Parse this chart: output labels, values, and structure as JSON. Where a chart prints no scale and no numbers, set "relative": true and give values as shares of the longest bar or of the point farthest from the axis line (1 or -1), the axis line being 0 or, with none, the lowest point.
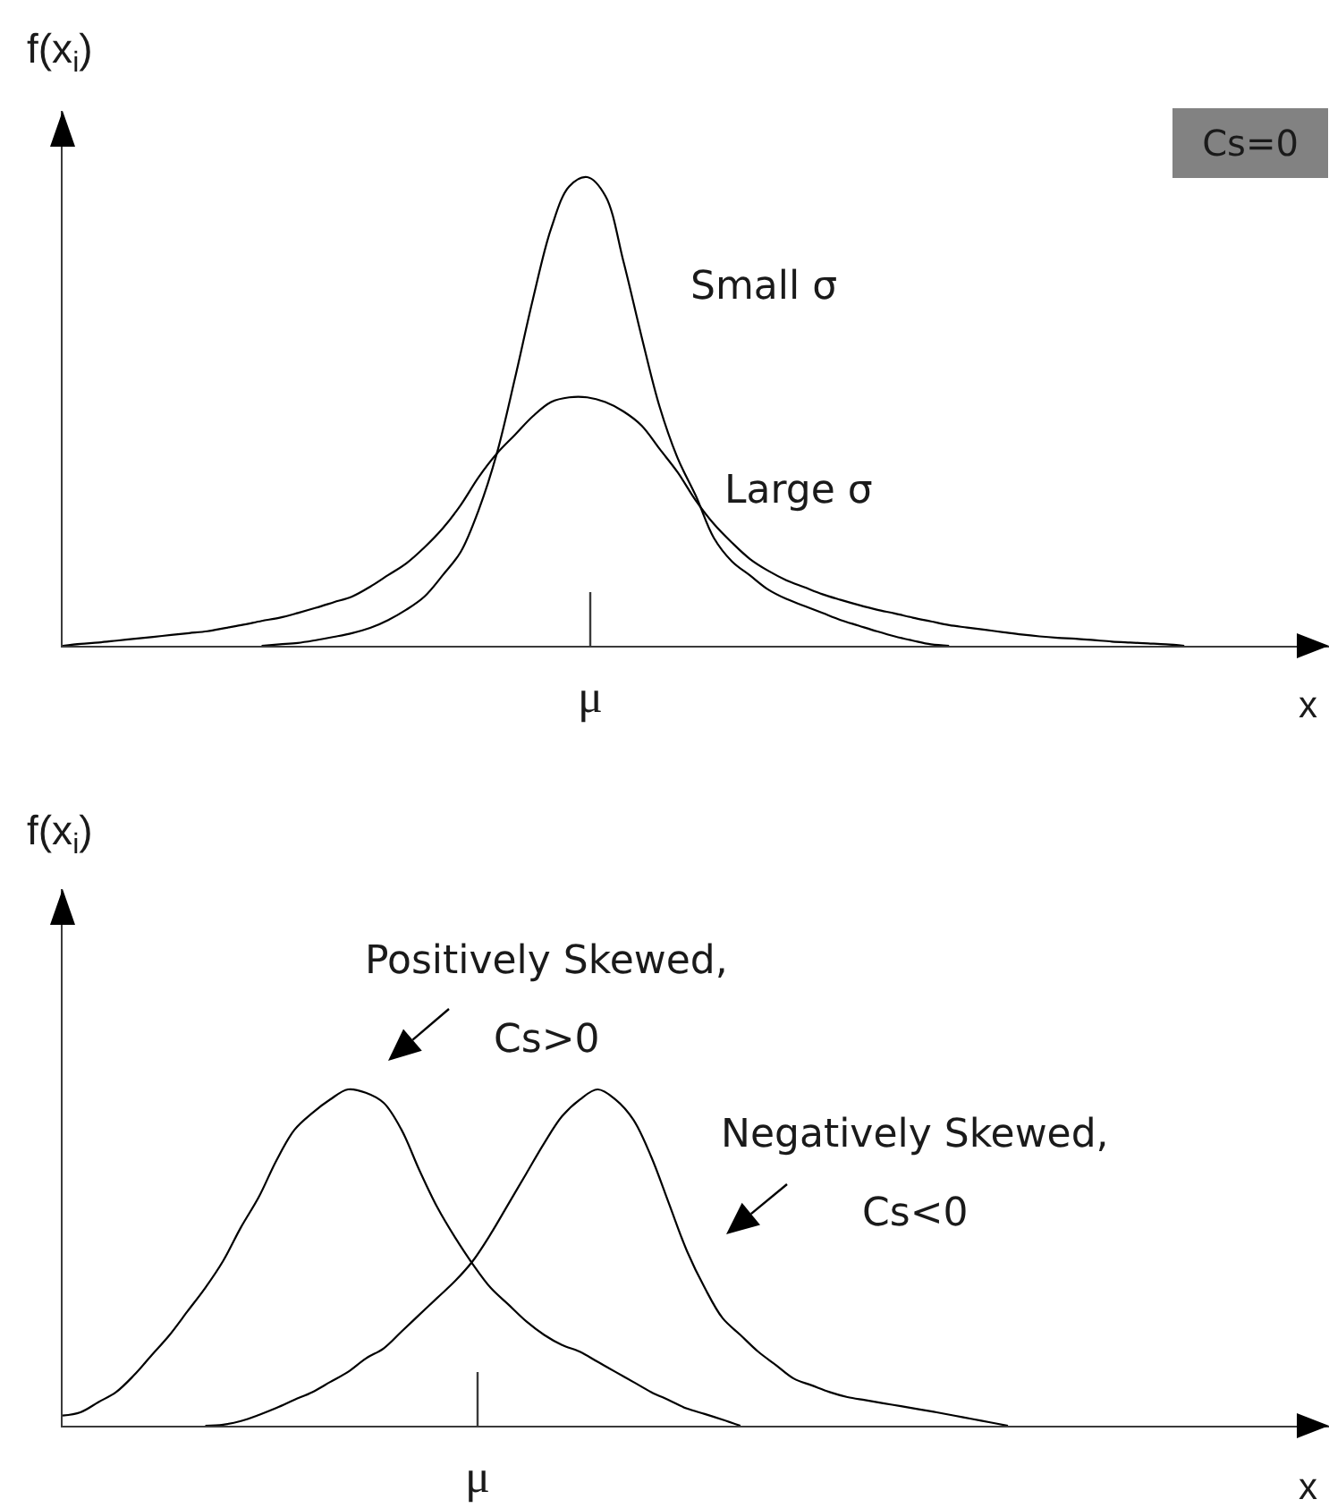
{
  "chart_data": [
    {
      "type": "line",
      "relative": true,
      "xlabel": "x",
      "ylabel": "f(x$_{i}$)",
      "annotations": [
        "Cs=0",
        "μ"
      ],
      "categories": [
        null,
        null,
        null,
        null,
        null,
        null,
        null,
        null,
        null,
        null,
        null,
        null,
        null,
        null,
        null,
        null,
        null,
        null,
        null,
        null,
        null,
        null,
        null,
        null,
        null,
        null,
        null,
        null,
        null,
        null,
        null,
        null,
        null,
        null,
        null,
        null,
        null,
        null,
        null,
        null,
        null,
        null,
        null,
        null,
        null,
        null,
        null,
        null,
        null,
        null,
        null,
        null,
        null,
        null,
        null,
        null,
        null,
        null,
        null,
        null,
        null,
        null,
        null,
        null,
        null,
        null,
        null,
        null,
        null,
        null,
        null
      ],
      "series": [
        {
          "name": "Small σ",
          "color": "#000000",
          "values": [
            null,
            null,
            null,
            null,
            null,
            null,
            null,
            null,
            null,
            null,
            null,
            0,
            0.003,
            0.006,
            0.012,
            0.019,
            0.027,
            0.038,
            0.055,
            0.077,
            0.105,
            0.15,
            0.2,
            0.29,
            0.41,
            0.57,
            0.74,
            0.89,
            0.98,
            1,
            0.96,
            0.82,
            0.66,
            0.51,
            0.4,
            0.32,
            0.23,
            0.18,
            0.15,
            0.12,
            0.1,
            0.085,
            0.07,
            0.055,
            0.043,
            0.031,
            0.02,
            0.011,
            0.003,
            0,
            null,
            null,
            null,
            null,
            null,
            null,
            null,
            null,
            null,
            null,
            null,
            null,
            null,
            null,
            null,
            null,
            null,
            null,
            null,
            null,
            null
          ]
        },
        {
          "name": "Large σ",
          "color": "#000000",
          "values": [
            0,
            0.004,
            0.007,
            0.011,
            0.015,
            0.019,
            0.023,
            0.027,
            0.031,
            0.038,
            0.045,
            0.053,
            0.06,
            0.07,
            0.081,
            0.093,
            0.105,
            0.126,
            0.151,
            0.176,
            0.21,
            0.25,
            0.3,
            0.36,
            0.41,
            0.45,
            0.49,
            0.52,
            0.53,
            0.53,
            0.52,
            0.5,
            0.47,
            0.42,
            0.37,
            0.31,
            0.26,
            0.22,
            0.185,
            0.16,
            0.14,
            0.125,
            0.11,
            0.098,
            0.087,
            0.077,
            0.069,
            0.06,
            0.052,
            0.044,
            0.039,
            0.034,
            0.029,
            0.024,
            0.02,
            0.017,
            0.015,
            0.012,
            0.009,
            0.007,
            0.005,
            0.003,
            0,
            null,
            null,
            null,
            null,
            null,
            null,
            null,
            null
          ]
        }
      ]
    },
    {
      "type": "line",
      "relative": true,
      "xlabel": "x",
      "ylabel": "f(x$_{i}$)",
      "annotations": [
        "μ"
      ],
      "categories": [
        null,
        null,
        null,
        null,
        null,
        null,
        null,
        null,
        null,
        null,
        null,
        null,
        null,
        null,
        null,
        null,
        null,
        null,
        null,
        null,
        null,
        null,
        null,
        null,
        null,
        null,
        null,
        null,
        null,
        null,
        null,
        null,
        null,
        null,
        null,
        null,
        null,
        null,
        null,
        null,
        null,
        null,
        null,
        null,
        null,
        null,
        null,
        null,
        null,
        null,
        null,
        null,
        null,
        null,
        null,
        null,
        null,
        null,
        null,
        null,
        null,
        null,
        null,
        null,
        null,
        null,
        null,
        null,
        null,
        null,
        null,
        null
      ],
      "series": [
        {
          "name": "Positively Skewed,\nCs>0",
          "color": "#000000",
          "values": [
            0.03,
            0.04,
            0.07,
            0.1,
            0.15,
            0.21,
            0.27,
            0.34,
            0.41,
            0.49,
            0.59,
            0.68,
            0.79,
            0.88,
            0.93,
            0.97,
            1,
            0.99,
            0.96,
            0.88,
            0.76,
            0.65,
            0.56,
            0.48,
            0.41,
            0.36,
            0.31,
            0.27,
            0.24,
            0.22,
            0.19,
            0.16,
            0.13,
            0.1,
            0.076,
            0.051,
            0.035,
            0.018,
            0,
            null,
            null,
            null,
            null,
            null,
            null,
            null,
            null,
            null,
            null,
            null,
            null,
            null,
            null,
            null,
            null,
            null,
            null,
            null,
            null,
            null,
            null,
            null,
            null,
            null,
            null,
            null,
            null,
            null,
            null,
            null,
            null,
            null
          ]
        },
        {
          "name": "Negatively Skewed,\nCs<0",
          "color": "#000000",
          "values": [
            null,
            null,
            null,
            null,
            null,
            null,
            null,
            null,
            0,
            0.003,
            0.014,
            0.032,
            0.053,
            0.077,
            0.1,
            0.13,
            0.16,
            0.2,
            0.23,
            0.28,
            0.33,
            0.38,
            0.43,
            0.49,
            0.57,
            0.66,
            0.75,
            0.84,
            0.92,
            0.97,
            1,
            0.97,
            0.91,
            0.8,
            0.66,
            0.52,
            0.41,
            0.32,
            0.27,
            0.22,
            0.18,
            0.14,
            0.12,
            0.1,
            0.085,
            0.076,
            0.067,
            0.058,
            0.049,
            0.04,
            0.03,
            0.02,
            0.01,
            0,
            null,
            null,
            null,
            null,
            null,
            null,
            null,
            null,
            null,
            null,
            null,
            null,
            null,
            null,
            null,
            null,
            null,
            null
          ]
        }
      ]
    }
  ]
}
